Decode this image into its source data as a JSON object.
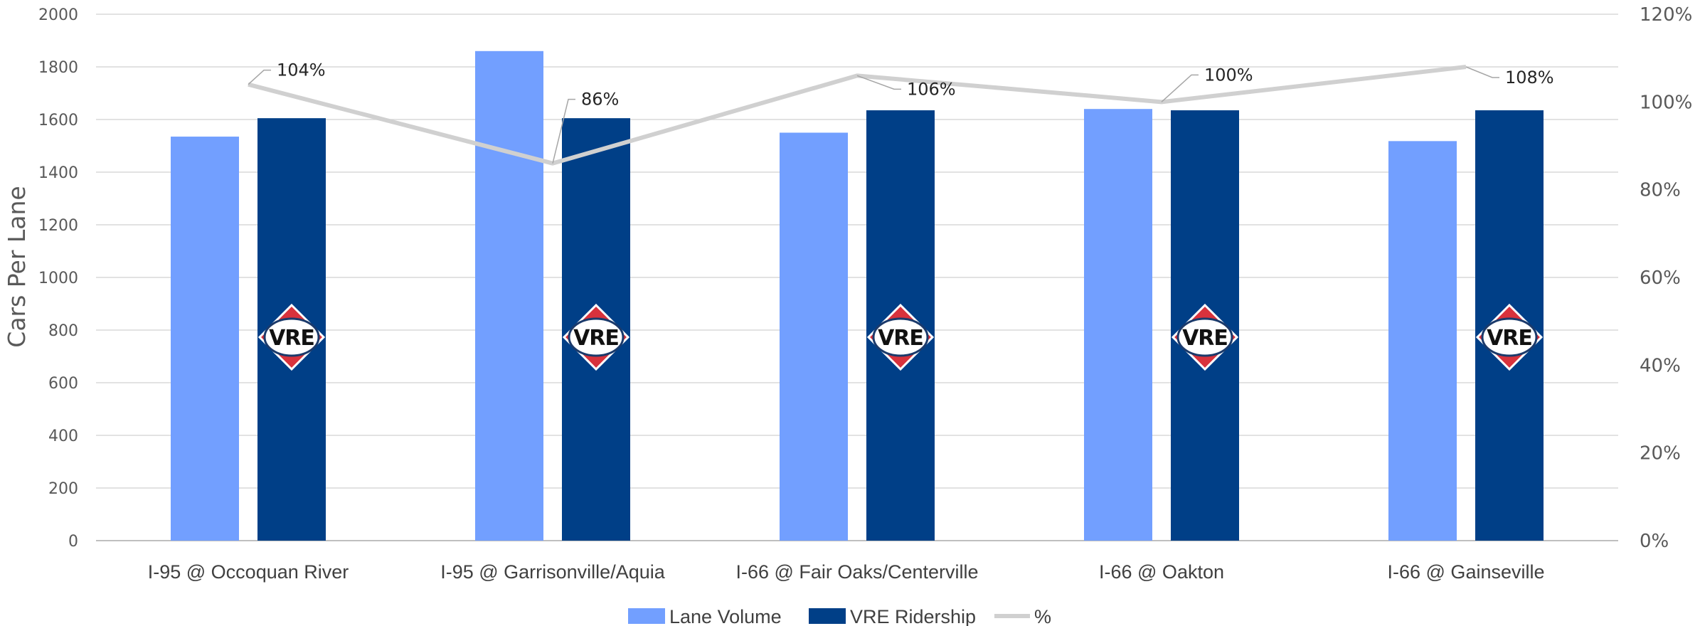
{
  "chart_data": {
    "type": "bar",
    "categories": [
      "I-95 @ Occoquan River",
      "I-95 @ Garrisonville/Aquia",
      "I-66 @ Fair Oaks/Centerville",
      "I-66 @ Oakton",
      "I-66 @ Gainseville"
    ],
    "series": [
      {
        "name": "Lane Volume",
        "kind": "bar",
        "axis": "left",
        "color": "#729FFF",
        "values": [
          1535,
          1860,
          1550,
          1640,
          1518
        ]
      },
      {
        "name": "VRE Ridership",
        "kind": "bar",
        "axis": "left",
        "color": "#003F87",
        "values": [
          1605,
          1605,
          1635,
          1635,
          1635
        ]
      },
      {
        "name": "%",
        "kind": "line",
        "axis": "right",
        "color": "#D0D0D0",
        "values": [
          104,
          86,
          106,
          100,
          108
        ]
      }
    ],
    "data_labels": [
      "104%",
      "86%",
      "106%",
      "100%",
      "108%"
    ],
    "ylabel": "Cars Per Lane",
    "ylim": [
      0,
      2000
    ],
    "yticks": [
      "0",
      "200",
      "400",
      "600",
      "800",
      "1000",
      "1200",
      "1400",
      "1600",
      "1800",
      "2000"
    ],
    "y2lim": [
      0,
      120
    ],
    "y2ticks": [
      "0%",
      "20%",
      "40%",
      "60%",
      "80%",
      "100%",
      "120%"
    ],
    "grid": true,
    "legend_position": "bottom",
    "logo_text": "VRE",
    "logo_colors": {
      "diamond_outer": "#D8323C",
      "ring": "#1B3A6B"
    }
  }
}
